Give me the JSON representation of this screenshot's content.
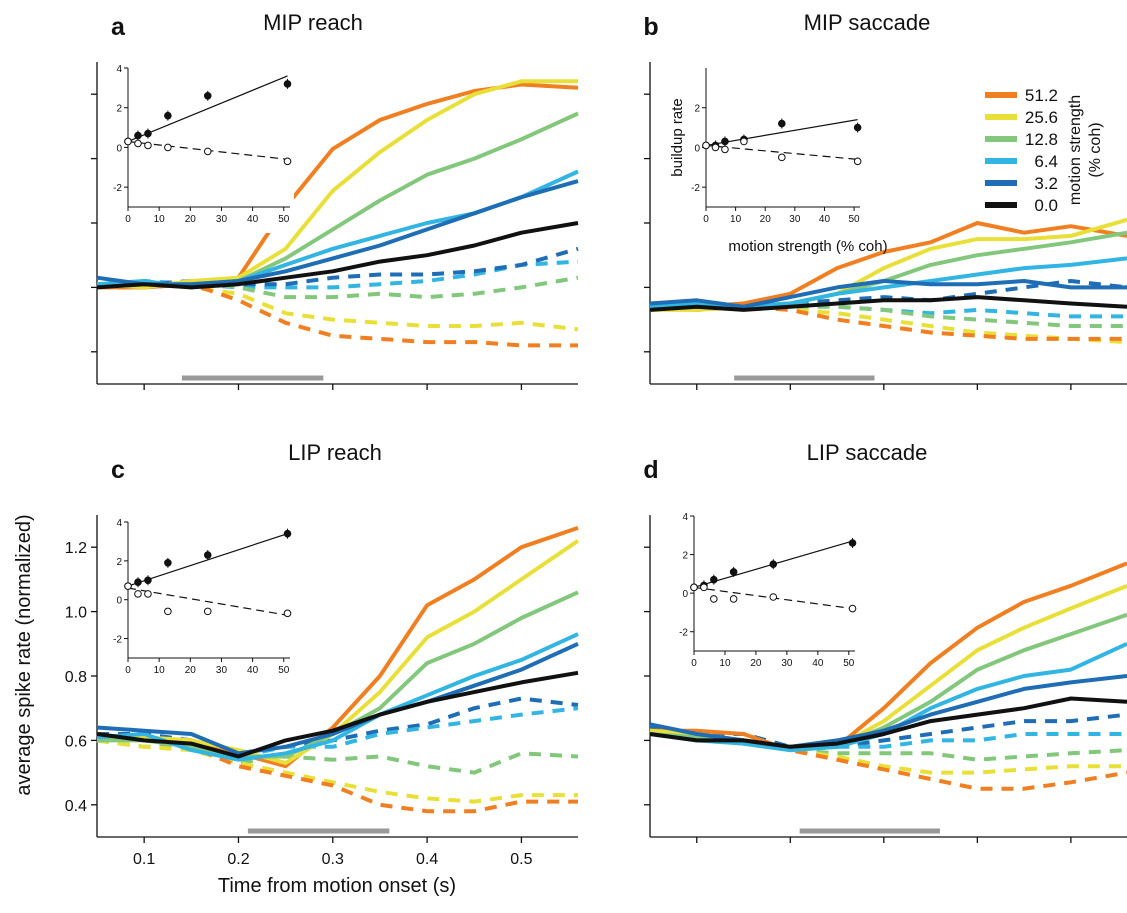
{
  "figure": {
    "xlabel": "Time from motion onset (s)",
    "ylabel": "average spike rate (normalized)"
  },
  "legend": {
    "title_line1": "motion strength",
    "title_line2": "(% coh)",
    "items": [
      {
        "label": "51.2",
        "color": "#f07f22"
      },
      {
        "label": "25.6",
        "color": "#e8e038"
      },
      {
        "label": "12.8",
        "color": "#83c77c"
      },
      {
        "label": "6.4",
        "color": "#32b5e2"
      },
      {
        "label": "3.2",
        "color": "#1f6db4"
      },
      {
        "label": "0.0",
        "color": "#111111"
      }
    ]
  },
  "chart_data": [
    {
      "panel": "a",
      "title": "MIP reach",
      "type": "line",
      "x": [
        0.05,
        0.1,
        0.15,
        0.2,
        0.25,
        0.3,
        0.35,
        0.4,
        0.45,
        0.5,
        0.56
      ],
      "xlim": [
        0.05,
        0.56
      ],
      "ylim": [
        0.3,
        1.3
      ],
      "show_x_tick_labels": false,
      "show_y_tick_labels": false,
      "stim_bar": [
        0.14,
        0.29
      ],
      "series": [
        {
          "coh": "51.2",
          "style": "solid",
          "values": [
            0.6,
            0.6,
            0.61,
            0.63,
            0.85,
            1.03,
            1.12,
            1.17,
            1.21,
            1.23,
            1.22
          ]
        },
        {
          "coh": "25.6",
          "style": "solid",
          "values": [
            0.61,
            0.6,
            0.62,
            0.63,
            0.72,
            0.9,
            1.02,
            1.12,
            1.2,
            1.24,
            1.24
          ]
        },
        {
          "coh": "12.8",
          "style": "solid",
          "values": [
            0.6,
            0.61,
            0.61,
            0.62,
            0.69,
            0.78,
            0.87,
            0.95,
            1.0,
            1.06,
            1.14
          ]
        },
        {
          "coh": "6.4",
          "style": "solid",
          "values": [
            0.61,
            0.62,
            0.6,
            0.62,
            0.67,
            0.72,
            0.76,
            0.8,
            0.83,
            0.88,
            0.96
          ]
        },
        {
          "coh": "3.2",
          "style": "solid",
          "values": [
            0.63,
            0.61,
            0.61,
            0.62,
            0.65,
            0.69,
            0.73,
            0.78,
            0.83,
            0.88,
            0.93
          ]
        },
        {
          "coh": "0.0",
          "style": "solid",
          "values": [
            0.6,
            0.61,
            0.6,
            0.61,
            0.63,
            0.65,
            0.68,
            0.7,
            0.73,
            0.77,
            0.8
          ]
        },
        {
          "coh": "6.4",
          "style": "dashed",
          "values": [
            0.6,
            0.62,
            0.61,
            0.6,
            0.6,
            0.6,
            0.61,
            0.62,
            0.64,
            0.67,
            0.68
          ]
        },
        {
          "coh": "3.2",
          "style": "dashed",
          "values": [
            0.6,
            0.61,
            0.62,
            0.61,
            0.61,
            0.63,
            0.64,
            0.64,
            0.65,
            0.67,
            0.72
          ]
        },
        {
          "coh": "12.8",
          "style": "dashed",
          "values": [
            0.61,
            0.6,
            0.62,
            0.6,
            0.57,
            0.57,
            0.58,
            0.57,
            0.58,
            0.6,
            0.63
          ]
        },
        {
          "coh": "25.6",
          "style": "dashed",
          "values": [
            0.6,
            0.61,
            0.6,
            0.58,
            0.52,
            0.5,
            0.49,
            0.48,
            0.48,
            0.49,
            0.47
          ]
        },
        {
          "coh": "51.2",
          "style": "dashed",
          "values": [
            0.6,
            0.6,
            0.61,
            0.56,
            0.49,
            0.45,
            0.44,
            0.43,
            0.43,
            0.42,
            0.42
          ]
        }
      ],
      "inset": {
        "xlim": [
          0,
          52
        ],
        "ylim": [
          -3,
          4
        ],
        "xticks": [
          "0",
          "10",
          "20",
          "30",
          "40",
          "50"
        ],
        "yticks": [
          "-2",
          "0",
          "2",
          "4"
        ],
        "xlabel": "",
        "ylabel": "",
        "x": [
          0,
          3.2,
          6.4,
          12.8,
          25.6,
          51.2
        ],
        "filled": [
          0.3,
          0.6,
          0.7,
          1.6,
          2.6,
          3.2
        ],
        "open": [
          0.3,
          0.2,
          0.1,
          0.0,
          -0.2,
          -0.7
        ],
        "fit_filled": [
          0.3,
          3.6
        ],
        "fit_open": [
          0.3,
          -0.6
        ]
      }
    },
    {
      "panel": "b",
      "title": "MIP saccade",
      "type": "line",
      "x": [
        0.05,
        0.1,
        0.15,
        0.2,
        0.25,
        0.3,
        0.35,
        0.4,
        0.45,
        0.5,
        0.56
      ],
      "xlim": [
        0.05,
        0.56
      ],
      "ylim": [
        0.3,
        1.3
      ],
      "show_x_tick_labels": false,
      "show_y_tick_labels": false,
      "stim_bar": [
        0.14,
        0.29
      ],
      "series": [
        {
          "coh": "51.2",
          "style": "solid",
          "values": [
            0.53,
            0.54,
            0.55,
            0.58,
            0.66,
            0.71,
            0.74,
            0.8,
            0.77,
            0.79,
            0.76
          ]
        },
        {
          "coh": "25.6",
          "style": "solid",
          "values": [
            0.53,
            0.53,
            0.54,
            0.55,
            0.58,
            0.66,
            0.72,
            0.75,
            0.75,
            0.76,
            0.81
          ]
        },
        {
          "coh": "12.8",
          "style": "solid",
          "values": [
            0.55,
            0.54,
            0.54,
            0.55,
            0.58,
            0.62,
            0.67,
            0.7,
            0.72,
            0.74,
            0.77
          ]
        },
        {
          "coh": "6.4",
          "style": "solid",
          "values": [
            0.54,
            0.55,
            0.54,
            0.55,
            0.58,
            0.6,
            0.62,
            0.64,
            0.66,
            0.67,
            0.69
          ]
        },
        {
          "coh": "3.2",
          "style": "solid",
          "values": [
            0.55,
            0.56,
            0.54,
            0.57,
            0.6,
            0.62,
            0.61,
            0.61,
            0.62,
            0.6,
            0.6
          ]
        },
        {
          "coh": "0.0",
          "style": "solid",
          "values": [
            0.53,
            0.54,
            0.53,
            0.54,
            0.55,
            0.56,
            0.56,
            0.57,
            0.56,
            0.55,
            0.54
          ]
        },
        {
          "coh": "3.2",
          "style": "dashed",
          "values": [
            0.54,
            0.55,
            0.54,
            0.55,
            0.56,
            0.57,
            0.56,
            0.58,
            0.6,
            0.62,
            0.6
          ]
        },
        {
          "coh": "6.4",
          "style": "dashed",
          "values": [
            0.54,
            0.53,
            0.54,
            0.55,
            0.54,
            0.53,
            0.52,
            0.53,
            0.52,
            0.51,
            0.51
          ]
        },
        {
          "coh": "12.8",
          "style": "dashed",
          "values": [
            0.55,
            0.54,
            0.55,
            0.54,
            0.54,
            0.53,
            0.51,
            0.5,
            0.49,
            0.48,
            0.48
          ]
        },
        {
          "coh": "25.6",
          "style": "dashed",
          "values": [
            0.54,
            0.53,
            0.54,
            0.53,
            0.52,
            0.5,
            0.48,
            0.46,
            0.45,
            0.44,
            0.43
          ]
        },
        {
          "coh": "51.2",
          "style": "dashed",
          "values": [
            0.54,
            0.53,
            0.54,
            0.53,
            0.5,
            0.48,
            0.46,
            0.45,
            0.44,
            0.44,
            0.44
          ]
        }
      ],
      "inset": {
        "xlim": [
          0,
          52
        ],
        "ylim": [
          -3,
          4
        ],
        "xticks": [
          "0",
          "10",
          "20",
          "30",
          "40",
          "50"
        ],
        "yticks": [
          "-2",
          "0",
          "2"
        ],
        "xlabel": "motion strength (% coh)",
        "ylabel": "buildup rate",
        "x": [
          0,
          3.2,
          6.4,
          12.8,
          25.6,
          51.2
        ],
        "filled": [
          0.1,
          0.1,
          0.3,
          0.4,
          1.2,
          1.0
        ],
        "open": [
          0.1,
          0.0,
          -0.1,
          0.3,
          -0.5,
          -0.7
        ],
        "fit_filled": [
          0.1,
          1.4
        ],
        "fit_open": [
          0.1,
          -0.6
        ]
      }
    },
    {
      "panel": "c",
      "title": "LIP reach",
      "type": "line",
      "x": [
        0.05,
        0.1,
        0.15,
        0.2,
        0.25,
        0.3,
        0.35,
        0.4,
        0.45,
        0.5,
        0.56
      ],
      "xlim": [
        0.05,
        0.56
      ],
      "ylim": [
        0.3,
        1.3
      ],
      "show_x_tick_labels": true,
      "show_y_tick_labels": true,
      "xticks": [
        0.1,
        0.2,
        0.3,
        0.4,
        0.5
      ],
      "xticklabels": [
        "0.1",
        "0.2",
        "0.3",
        "0.4",
        "0.5"
      ],
      "yticks": [
        0.4,
        0.6,
        0.8,
        1.0,
        1.2
      ],
      "yticklabels": [
        "0.4",
        "0.6",
        "0.8",
        "1.0",
        "1.2"
      ],
      "stim_bar": [
        0.21,
        0.36
      ],
      "series": [
        {
          "coh": "51.2",
          "style": "solid",
          "values": [
            0.62,
            0.6,
            0.6,
            0.56,
            0.52,
            0.64,
            0.8,
            1.02,
            1.1,
            1.2,
            1.26
          ]
        },
        {
          "coh": "25.6",
          "style": "solid",
          "values": [
            0.61,
            0.61,
            0.6,
            0.57,
            0.53,
            0.62,
            0.75,
            0.92,
            1.0,
            1.1,
            1.22
          ]
        },
        {
          "coh": "12.8",
          "style": "solid",
          "values": [
            0.6,
            0.6,
            0.58,
            0.55,
            0.55,
            0.62,
            0.7,
            0.84,
            0.9,
            0.98,
            1.06
          ]
        },
        {
          "coh": "6.4",
          "style": "solid",
          "values": [
            0.61,
            0.62,
            0.57,
            0.54,
            0.56,
            0.6,
            0.68,
            0.74,
            0.8,
            0.85,
            0.93
          ]
        },
        {
          "coh": "3.2",
          "style": "solid",
          "values": [
            0.64,
            0.63,
            0.62,
            0.56,
            0.58,
            0.62,
            0.68,
            0.72,
            0.77,
            0.82,
            0.9
          ]
        },
        {
          "coh": "0.0",
          "style": "solid",
          "values": [
            0.62,
            0.6,
            0.59,
            0.55,
            0.6,
            0.63,
            0.68,
            0.72,
            0.75,
            0.78,
            0.81
          ]
        },
        {
          "coh": "3.2",
          "style": "dashed",
          "values": [
            0.62,
            0.62,
            0.6,
            0.56,
            0.58,
            0.6,
            0.63,
            0.65,
            0.7,
            0.73,
            0.71
          ]
        },
        {
          "coh": "6.4",
          "style": "dashed",
          "values": [
            0.6,
            0.61,
            0.59,
            0.55,
            0.58,
            0.58,
            0.62,
            0.64,
            0.66,
            0.68,
            0.7
          ]
        },
        {
          "coh": "12.8",
          "style": "dashed",
          "values": [
            0.6,
            0.58,
            0.58,
            0.53,
            0.55,
            0.54,
            0.55,
            0.52,
            0.5,
            0.56,
            0.55
          ]
        },
        {
          "coh": "25.6",
          "style": "dashed",
          "values": [
            0.6,
            0.58,
            0.57,
            0.53,
            0.5,
            0.47,
            0.44,
            0.42,
            0.41,
            0.43,
            0.43
          ]
        },
        {
          "coh": "51.2",
          "style": "dashed",
          "values": [
            0.62,
            0.6,
            0.58,
            0.52,
            0.49,
            0.46,
            0.4,
            0.38,
            0.38,
            0.41,
            0.41
          ]
        }
      ],
      "inset": {
        "xlim": [
          0,
          52
        ],
        "ylim": [
          -3,
          4
        ],
        "xticks": [
          "0",
          "10",
          "20",
          "30",
          "40",
          "50"
        ],
        "yticks": [
          "-2",
          "0",
          "2",
          "4"
        ],
        "xlabel": "",
        "ylabel": "",
        "x": [
          0,
          3.2,
          6.4,
          12.8,
          25.6,
          51.2
        ],
        "filled": [
          0.7,
          0.9,
          1.0,
          1.9,
          2.3,
          3.4
        ],
        "open": [
          0.7,
          0.3,
          0.3,
          -0.6,
          -0.6,
          -0.7
        ],
        "fit_filled": [
          0.7,
          3.4
        ],
        "fit_open": [
          0.6,
          -0.8
        ]
      }
    },
    {
      "panel": "d",
      "title": "LIP saccade",
      "type": "line",
      "x": [
        0.05,
        0.1,
        0.15,
        0.2,
        0.25,
        0.3,
        0.35,
        0.4,
        0.45,
        0.5,
        0.56
      ],
      "xlim": [
        0.05,
        0.56
      ],
      "ylim": [
        0.3,
        1.3
      ],
      "show_x_tick_labels": false,
      "show_y_tick_labels": false,
      "stim_bar": [
        0.21,
        0.36
      ],
      "series": [
        {
          "coh": "51.2",
          "style": "solid",
          "values": [
            0.63,
            0.63,
            0.62,
            0.57,
            0.58,
            0.7,
            0.84,
            0.95,
            1.03,
            1.08,
            1.15
          ]
        },
        {
          "coh": "25.6",
          "style": "solid",
          "values": [
            0.63,
            0.62,
            0.6,
            0.57,
            0.58,
            0.66,
            0.77,
            0.88,
            0.95,
            1.01,
            1.08
          ]
        },
        {
          "coh": "12.8",
          "style": "solid",
          "values": [
            0.62,
            0.61,
            0.59,
            0.57,
            0.58,
            0.64,
            0.72,
            0.82,
            0.88,
            0.93,
            0.99
          ]
        },
        {
          "coh": "6.4",
          "style": "solid",
          "values": [
            0.62,
            0.6,
            0.59,
            0.57,
            0.58,
            0.62,
            0.7,
            0.76,
            0.8,
            0.82,
            0.9
          ]
        },
        {
          "coh": "3.2",
          "style": "solid",
          "values": [
            0.65,
            0.62,
            0.6,
            0.58,
            0.6,
            0.63,
            0.68,
            0.72,
            0.76,
            0.78,
            0.8
          ]
        },
        {
          "coh": "0.0",
          "style": "solid",
          "values": [
            0.62,
            0.6,
            0.6,
            0.58,
            0.59,
            0.62,
            0.66,
            0.68,
            0.7,
            0.73,
            0.72
          ]
        },
        {
          "coh": "3.2",
          "style": "dashed",
          "values": [
            0.64,
            0.62,
            0.62,
            0.58,
            0.58,
            0.6,
            0.62,
            0.64,
            0.66,
            0.66,
            0.68
          ]
        },
        {
          "coh": "6.4",
          "style": "dashed",
          "values": [
            0.63,
            0.62,
            0.6,
            0.57,
            0.58,
            0.58,
            0.6,
            0.6,
            0.62,
            0.62,
            0.62
          ]
        },
        {
          "coh": "12.8",
          "style": "dashed",
          "values": [
            0.62,
            0.62,
            0.6,
            0.57,
            0.56,
            0.56,
            0.56,
            0.54,
            0.55,
            0.56,
            0.57
          ]
        },
        {
          "coh": "25.6",
          "style": "dashed",
          "values": [
            0.62,
            0.6,
            0.59,
            0.57,
            0.55,
            0.52,
            0.5,
            0.5,
            0.51,
            0.52,
            0.52
          ]
        },
        {
          "coh": "51.2",
          "style": "dashed",
          "values": [
            0.63,
            0.61,
            0.6,
            0.57,
            0.54,
            0.51,
            0.48,
            0.45,
            0.45,
            0.47,
            0.5
          ]
        }
      ],
      "inset": {
        "xlim": [
          0,
          52
        ],
        "ylim": [
          -3,
          4
        ],
        "xticks": [
          "0",
          "10",
          "20",
          "30",
          "40",
          "50"
        ],
        "yticks": [
          "-2",
          "0",
          "2",
          "4"
        ],
        "xlabel": "",
        "ylabel": "",
        "x": [
          0,
          3.2,
          6.4,
          12.8,
          25.6,
          51.2
        ],
        "filled": [
          0.3,
          0.4,
          0.7,
          1.1,
          1.5,
          2.6
        ],
        "open": [
          0.3,
          0.3,
          -0.3,
          -0.3,
          -0.2,
          -0.8
        ],
        "fit_filled": [
          0.3,
          2.7
        ],
        "fit_open": [
          0.3,
          -0.8
        ]
      }
    }
  ]
}
